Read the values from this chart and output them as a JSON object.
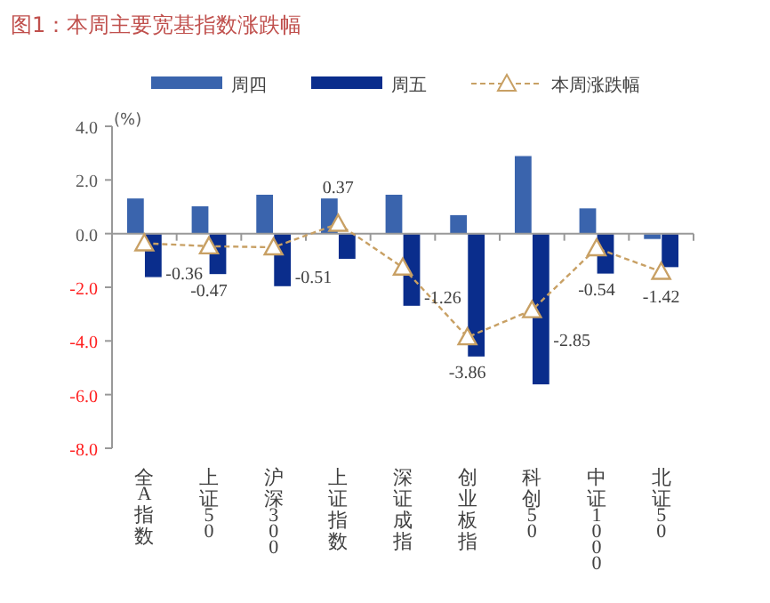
{
  "chart_data": {
    "type": "bar",
    "title": "图1：本周主要宽基指数涨跌幅",
    "ylabel": "(%)",
    "categories": [
      "全A指数",
      "上证50",
      "沪深300",
      "上证指数",
      "深证成指",
      "创业板指",
      "科创50",
      "中证1000",
      "北证50"
    ],
    "series": [
      {
        "name": "周四",
        "color": "#3a64ad",
        "values": [
          1.33,
          1.04,
          1.47,
          1.33,
          1.47,
          0.71,
          2.91,
          0.96,
          -0.22
        ]
      },
      {
        "name": "周五",
        "color": "#0a2d8c",
        "values": [
          -1.64,
          -1.53,
          -1.98,
          -0.96,
          -2.71,
          -4.6,
          -5.64,
          -1.51,
          -1.27
        ]
      },
      {
        "name": "本周涨跌幅",
        "type": "line",
        "color": "#c8a064",
        "marker": "triangle",
        "line_style": "dashed",
        "values": [
          -0.36,
          -0.47,
          -0.51,
          0.37,
          -1.26,
          -3.86,
          -2.85,
          -0.54,
          -1.42
        ],
        "value_labels": [
          "-0.36",
          "-0.47",
          "-0.51",
          "0.37",
          "-1.26",
          "-3.86",
          "-2.85",
          "-0.54",
          "-1.42"
        ]
      }
    ],
    "ylim": [
      -8,
      4
    ],
    "yticks": [
      {
        "value": -8,
        "label": "-8.0"
      },
      {
        "value": -6,
        "label": "-6.0"
      },
      {
        "value": -4,
        "label": "-4.0"
      },
      {
        "value": -2,
        "label": "-2.0"
      },
      {
        "value": 0,
        "label": "0.0"
      },
      {
        "value": 2,
        "label": "2.0"
      },
      {
        "value": 4,
        "label": "4.0"
      }
    ],
    "ref_lines": [
      {
        "axis": "y",
        "value": 0,
        "color": "#999999"
      }
    ],
    "legend": "top",
    "grid": false
  }
}
